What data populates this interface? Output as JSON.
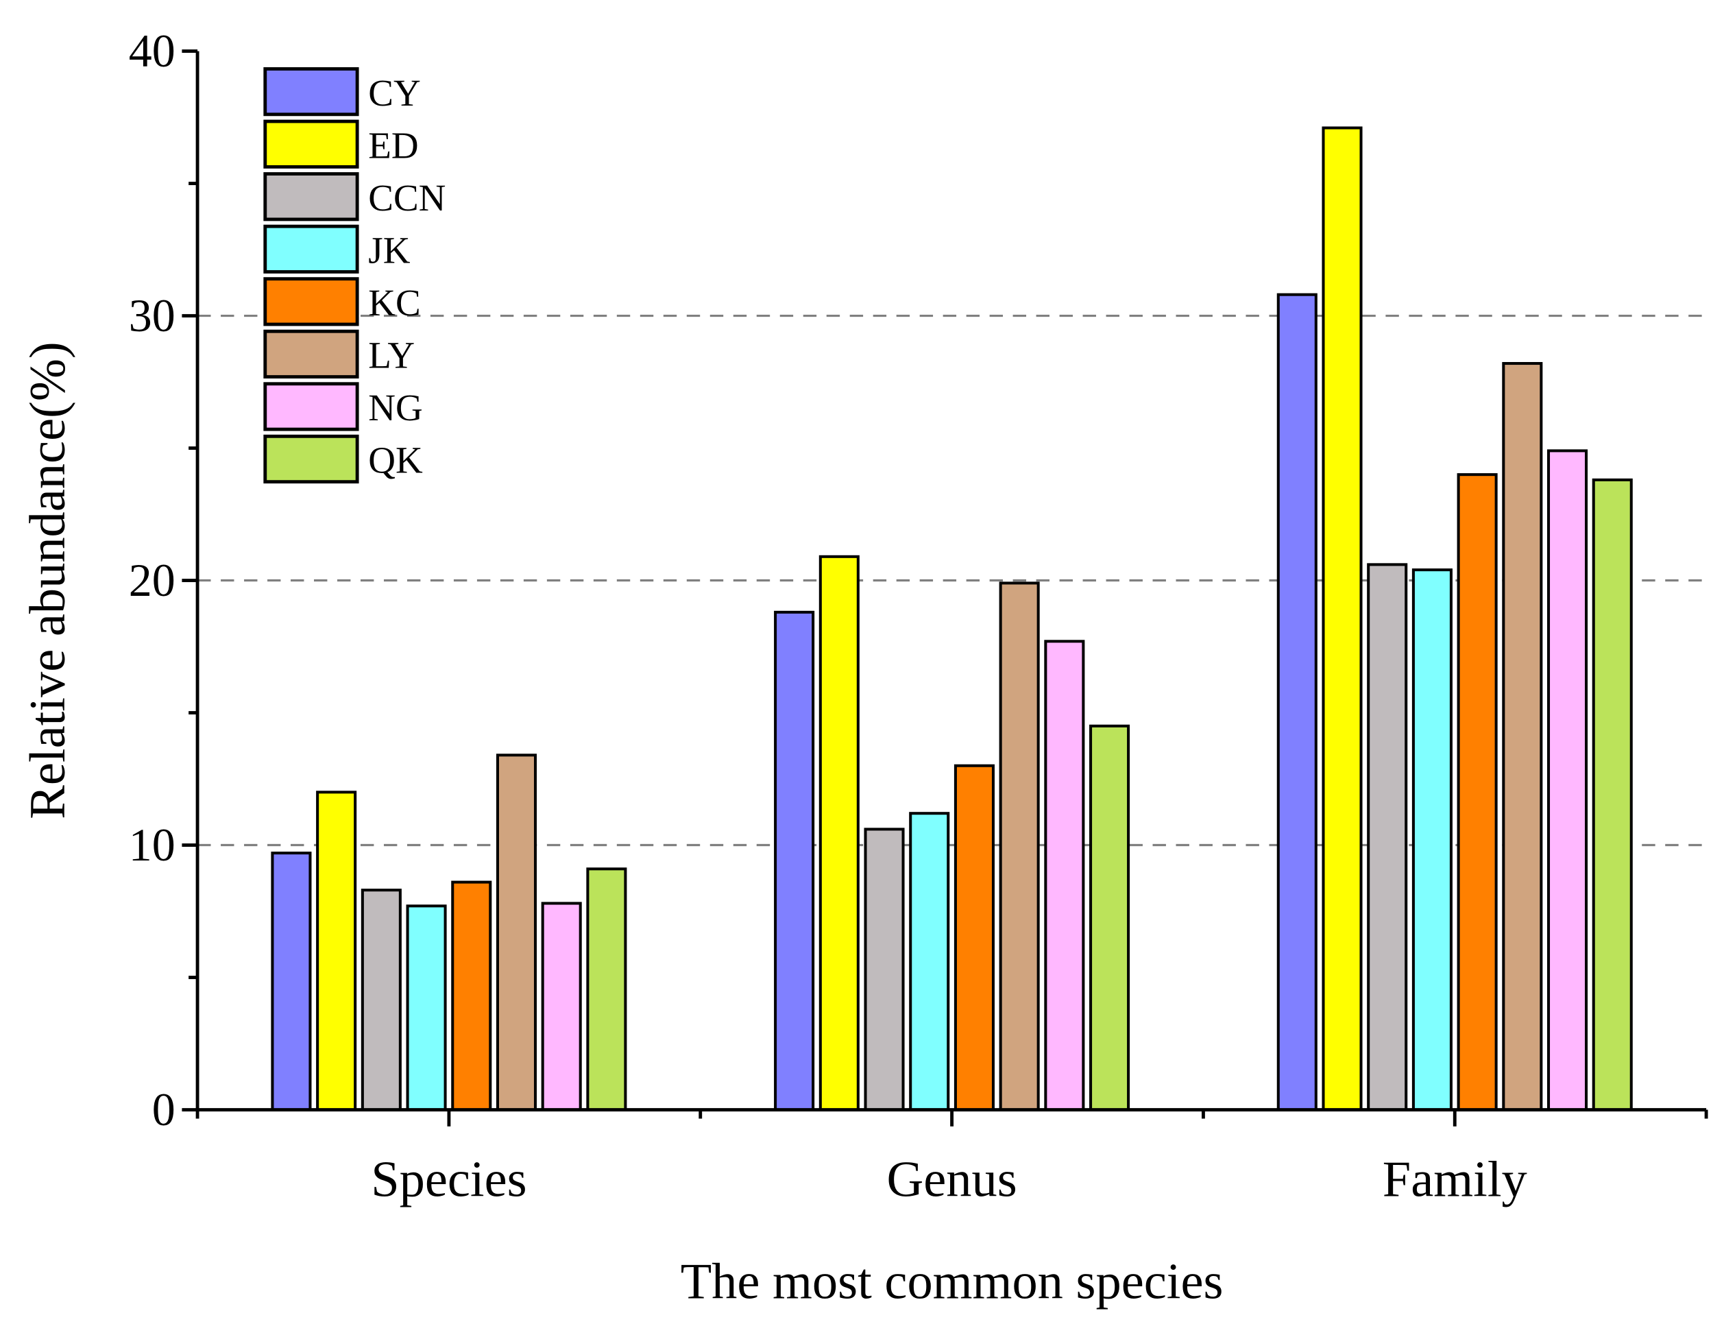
{
  "chart_data": {
    "type": "bar",
    "title": "",
    "xlabel": "The most common species",
    "ylabel": "Relative abundance(%)",
    "ylim": [
      0,
      40
    ],
    "yticks": [
      0,
      10,
      20,
      30,
      40
    ],
    "grid": "dashed horizontal at 10, 20, 30",
    "legend_position": "top-left",
    "categories": [
      "Species",
      "Genus",
      "Family"
    ],
    "series": [
      {
        "name": "CY",
        "color": "#8080FF",
        "values": [
          9.7,
          18.8,
          30.8
        ]
      },
      {
        "name": "ED",
        "color": "#FFFF00",
        "values": [
          12.0,
          20.9,
          37.1
        ]
      },
      {
        "name": "CCN",
        "color": "#C0BBBD",
        "values": [
          8.3,
          10.6,
          20.6
        ]
      },
      {
        "name": "JK",
        "color": "#80FFFF",
        "values": [
          7.7,
          11.2,
          20.4
        ]
      },
      {
        "name": "KC",
        "color": "#FF8000",
        "values": [
          8.6,
          13.0,
          24.0
        ]
      },
      {
        "name": "LY",
        "color": "#D0A47F",
        "values": [
          13.4,
          19.9,
          28.2
        ]
      },
      {
        "name": "NG",
        "color": "#FFB8FF",
        "values": [
          7.8,
          17.7,
          24.9
        ]
      },
      {
        "name": "QK",
        "color": "#BBE35A",
        "values": [
          9.1,
          14.5,
          23.8
        ]
      }
    ]
  }
}
